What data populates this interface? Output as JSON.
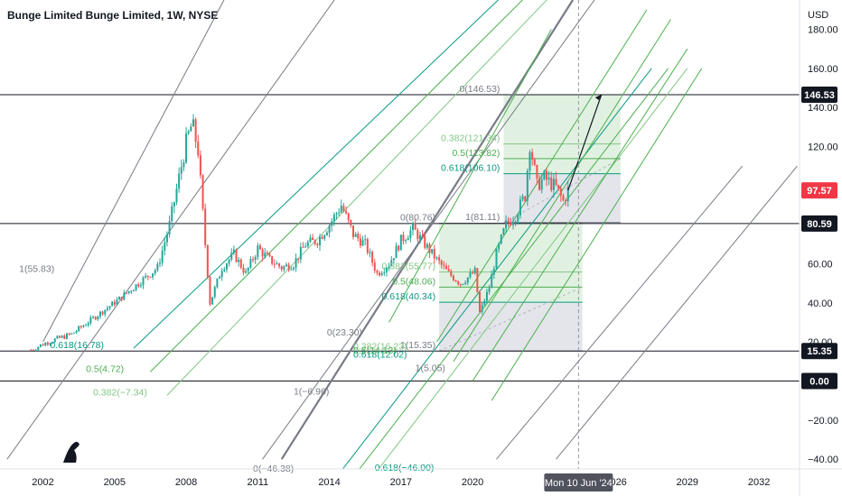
{
  "title": "Bunge Limited Bunge Limited, 1W, NYSE",
  "currency": "USD",
  "colors": {
    "background": "#ffffff",
    "candle_up": "#26a69a",
    "candle_down": "#ef5350",
    "fib_dark": "#089981",
    "fib_mid": "#4caf50",
    "fib_light": "#81c784",
    "pitchfork_gray": "#787b86",
    "axis_text": "#131722",
    "price_badge_current": "#f23645",
    "crosshair_label_bg": "#50535e",
    "fill_green": "#c8e6c9",
    "fill_gray": "#d1d4dc"
  },
  "chart_data": {
    "type": "candlestick",
    "title": "Bunge Limited Bunge Limited, 1W, NYSE",
    "x_ticks": [
      "2002",
      "2005",
      "2008",
      "2011",
      "2014",
      "2017",
      "2020",
      "2026",
      "2029",
      "2032"
    ],
    "y_ticks": [
      "180.00",
      "160.00",
      "140.00",
      "120.00",
      "80.00",
      "60.00",
      "40.00",
      "20.00",
      "0.00",
      "−20.00",
      "−40.00"
    ],
    "ylim": [
      -45,
      195
    ],
    "xlim": [
      2000.2,
      2033.7
    ],
    "price_badges": [
      {
        "text": "146.53",
        "value": 146.53,
        "style": "dark"
      },
      {
        "text": "97.57",
        "value": 97.57,
        "style": "current"
      },
      {
        "text": "80.59",
        "value": 80.59,
        "style": "dark"
      },
      {
        "text": "15.35",
        "value": 15.35,
        "style": "dark"
      },
      {
        "text": "0.00",
        "value": 0,
        "style": "dark"
      }
    ],
    "horizontal_lines": [
      146.53,
      80.59,
      15.35,
      0.0
    ],
    "crosshair": {
      "x": 2024.44,
      "label": "Mon 10 Jun '24"
    },
    "price_path": [
      [
        2001.5,
        16
      ],
      [
        2002.2,
        20
      ],
      [
        2003.2,
        24
      ],
      [
        2004.2,
        33
      ],
      [
        2005.2,
        42
      ],
      [
        2006.2,
        52
      ],
      [
        2006.8,
        58
      ],
      [
        2007.3,
        80
      ],
      [
        2007.8,
        110
      ],
      [
        2008.0,
        122
      ],
      [
        2008.25,
        132
      ],
      [
        2008.5,
        118
      ],
      [
        2008.8,
        70
      ],
      [
        2009.0,
        40
      ],
      [
        2009.5,
        58
      ],
      [
        2010.0,
        65
      ],
      [
        2010.5,
        55
      ],
      [
        2011.0,
        68
      ],
      [
        2011.5,
        62
      ],
      [
        2012.0,
        58
      ],
      [
        2012.5,
        60
      ],
      [
        2013.0,
        70
      ],
      [
        2013.5,
        72
      ],
      [
        2014.0,
        80
      ],
      [
        2014.5,
        90
      ],
      [
        2015.0,
        75
      ],
      [
        2015.5,
        70
      ],
      [
        2016.0,
        55
      ],
      [
        2016.5,
        60
      ],
      [
        2017.0,
        72
      ],
      [
        2017.5,
        78
      ],
      [
        2018.0,
        70
      ],
      [
        2018.5,
        62
      ],
      [
        2019.0,
        55
      ],
      [
        2019.5,
        50
      ],
      [
        2020.1,
        56
      ],
      [
        2020.3,
        35
      ],
      [
        2020.7,
        48
      ],
      [
        2021.0,
        65
      ],
      [
        2021.4,
        80
      ],
      [
        2021.8,
        85
      ],
      [
        2022.2,
        95
      ],
      [
        2022.4,
        122
      ],
      [
        2022.7,
        100
      ],
      [
        2023.0,
        104
      ],
      [
        2023.5,
        99
      ],
      [
        2023.8,
        92
      ],
      [
        2024.0,
        97.57
      ]
    ],
    "projection_arrow": {
      "from": [
        2024.0,
        97.57
      ],
      "to": [
        2025.4,
        146.53
      ]
    },
    "pitchfork_gray_lines": [
      [
        [
          2000.5,
          -40
        ],
        [
          2014.5,
          200
        ]
      ],
      [
        [
          2002.0,
          20
        ],
        [
          2009.8,
          200
        ]
      ],
      [
        [
          2011.2,
          -40
        ],
        [
          2025.4,
          200
        ]
      ],
      [
        [
          2021.0,
          -40
        ],
        [
          2031.3,
          110
        ]
      ],
      [
        [
          2023.5,
          -40
        ],
        [
          2033.6,
          110
        ]
      ]
    ],
    "fib_fans": [
      {
        "level": "0.618",
        "color": "dark",
        "from": [
          2005.8,
          16.78
        ],
        "to": [
          2021.5,
          200
        ]
      },
      {
        "level": "0.5",
        "color": "mid",
        "from": [
          2006.5,
          4.72
        ],
        "to": [
          2022.5,
          200
        ]
      },
      {
        "level": "0.382",
        "color": "light",
        "from": [
          2007.2,
          -7.34
        ],
        "to": [
          2023.5,
          200
        ]
      },
      {
        "level": "0.618",
        "color": "dark",
        "from": [
          2014.5,
          -46
        ],
        "to": [
          2027.5,
          160
        ]
      },
      {
        "level": "0.5",
        "color": "mid",
        "from": [
          2015.2,
          -46
        ],
        "to": [
          2028.2,
          160
        ]
      },
      {
        "level": "0.382",
        "color": "light",
        "from": [
          2016.0,
          -46
        ],
        "to": [
          2029.0,
          160
        ]
      }
    ],
    "upper_fib_box": {
      "x_range": [
        2021.3,
        2026.2
      ],
      "levels": [
        {
          "label": "0(146.53)",
          "value": 146.53,
          "color": "gray"
        },
        {
          "label": "0.382(121.34)",
          "value": 121.34,
          "color": "light"
        },
        {
          "label": "0.5(113.82)",
          "value": 113.82,
          "color": "mid"
        },
        {
          "label": "0.618(106.10)",
          "value": 106.1,
          "color": "dark"
        },
        {
          "label": "1(81.11)",
          "value": 81.11,
          "color": "gray"
        }
      ]
    },
    "lower_fib_box": {
      "x_range": [
        2018.6,
        2024.6
      ],
      "levels": [
        {
          "label": "0(80.76)",
          "value": 80.76,
          "color": "gray"
        },
        {
          "label": "0.382(55.77)",
          "value": 55.77,
          "color": "light"
        },
        {
          "label": "0.5(48.06)",
          "value": 48.06,
          "color": "mid"
        },
        {
          "label": "0.618(40.34)",
          "value": 40.34,
          "color": "dark"
        },
        {
          "label": "1(15.35)",
          "value": 15.35,
          "color": "gray"
        }
      ]
    },
    "annotations": [
      {
        "text": "1(55.83)",
        "x": 2001.0,
        "y": 55.83,
        "color": "gray"
      },
      {
        "text": "0.618(16.78)",
        "x": 2002.3,
        "y": 16.78,
        "color": "dark"
      },
      {
        "text": "0.5(4.72)",
        "x": 2003.8,
        "y": 4.72,
        "color": "mid"
      },
      {
        "text": "0.382(−7.34)",
        "x": 2004.1,
        "y": -7.34,
        "color": "light"
      },
      {
        "text": "0(23.30)",
        "x": 2013.9,
        "y": 23.3,
        "color": "gray"
      },
      {
        "text": "0.382(16.23)",
        "x": 2015.0,
        "y": 16.23,
        "color": "light"
      },
      {
        "text": "0.5(14.13)",
        "x": 2015.0,
        "y": 14.13,
        "color": "mid"
      },
      {
        "text": "0.618(12.02)",
        "x": 2015.0,
        "y": 12.02,
        "color": "dark"
      },
      {
        "text": "1(−6.96)",
        "x": 2012.5,
        "y": -6.96,
        "color": "gray"
      },
      {
        "text": "1(5.05)",
        "x": 2017.6,
        "y": 5.05,
        "color": "gray"
      },
      {
        "text": "0(−46.38)",
        "x": 2010.8,
        "y": -46.38,
        "color": "gray"
      },
      {
        "text": "0.618(−46.00)",
        "x": 2015.9,
        "y": -46.0,
        "color": "dark"
      }
    ]
  }
}
